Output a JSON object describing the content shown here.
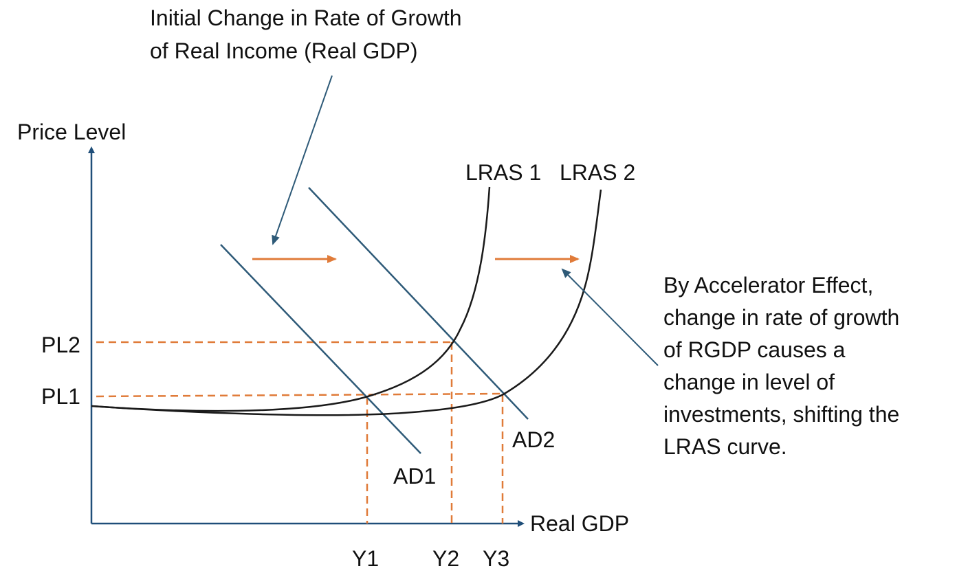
{
  "annotations": {
    "top_note": [
      "Initial Change in Rate of Growth",
      "of Real Income (Real GDP)"
    ],
    "side_note": [
      "By Accelerator Effect,",
      "change in rate of growth",
      "of RGDP causes a",
      "change in level of",
      "investments, shifting the",
      "LRAS curve."
    ]
  },
  "axes": {
    "y_label": "Price Level",
    "x_label": "Real GDP"
  },
  "curves": {
    "lras1": "LRAS 1",
    "lras2": "LRAS 2",
    "ad1": "AD1",
    "ad2": "AD2"
  },
  "levels": {
    "pl1": "PL1",
    "pl2": "PL2"
  },
  "outputs": {
    "y1": "Y1",
    "y2": "Y2",
    "y3": "Y3"
  },
  "colors": {
    "axis": "#1f4e79",
    "ad_line": "#2e5a78",
    "curve": "#1a1a1a",
    "dashed": "#e07b39",
    "shift_arrow": "#e07b39",
    "pointer": "#2e5a78"
  }
}
